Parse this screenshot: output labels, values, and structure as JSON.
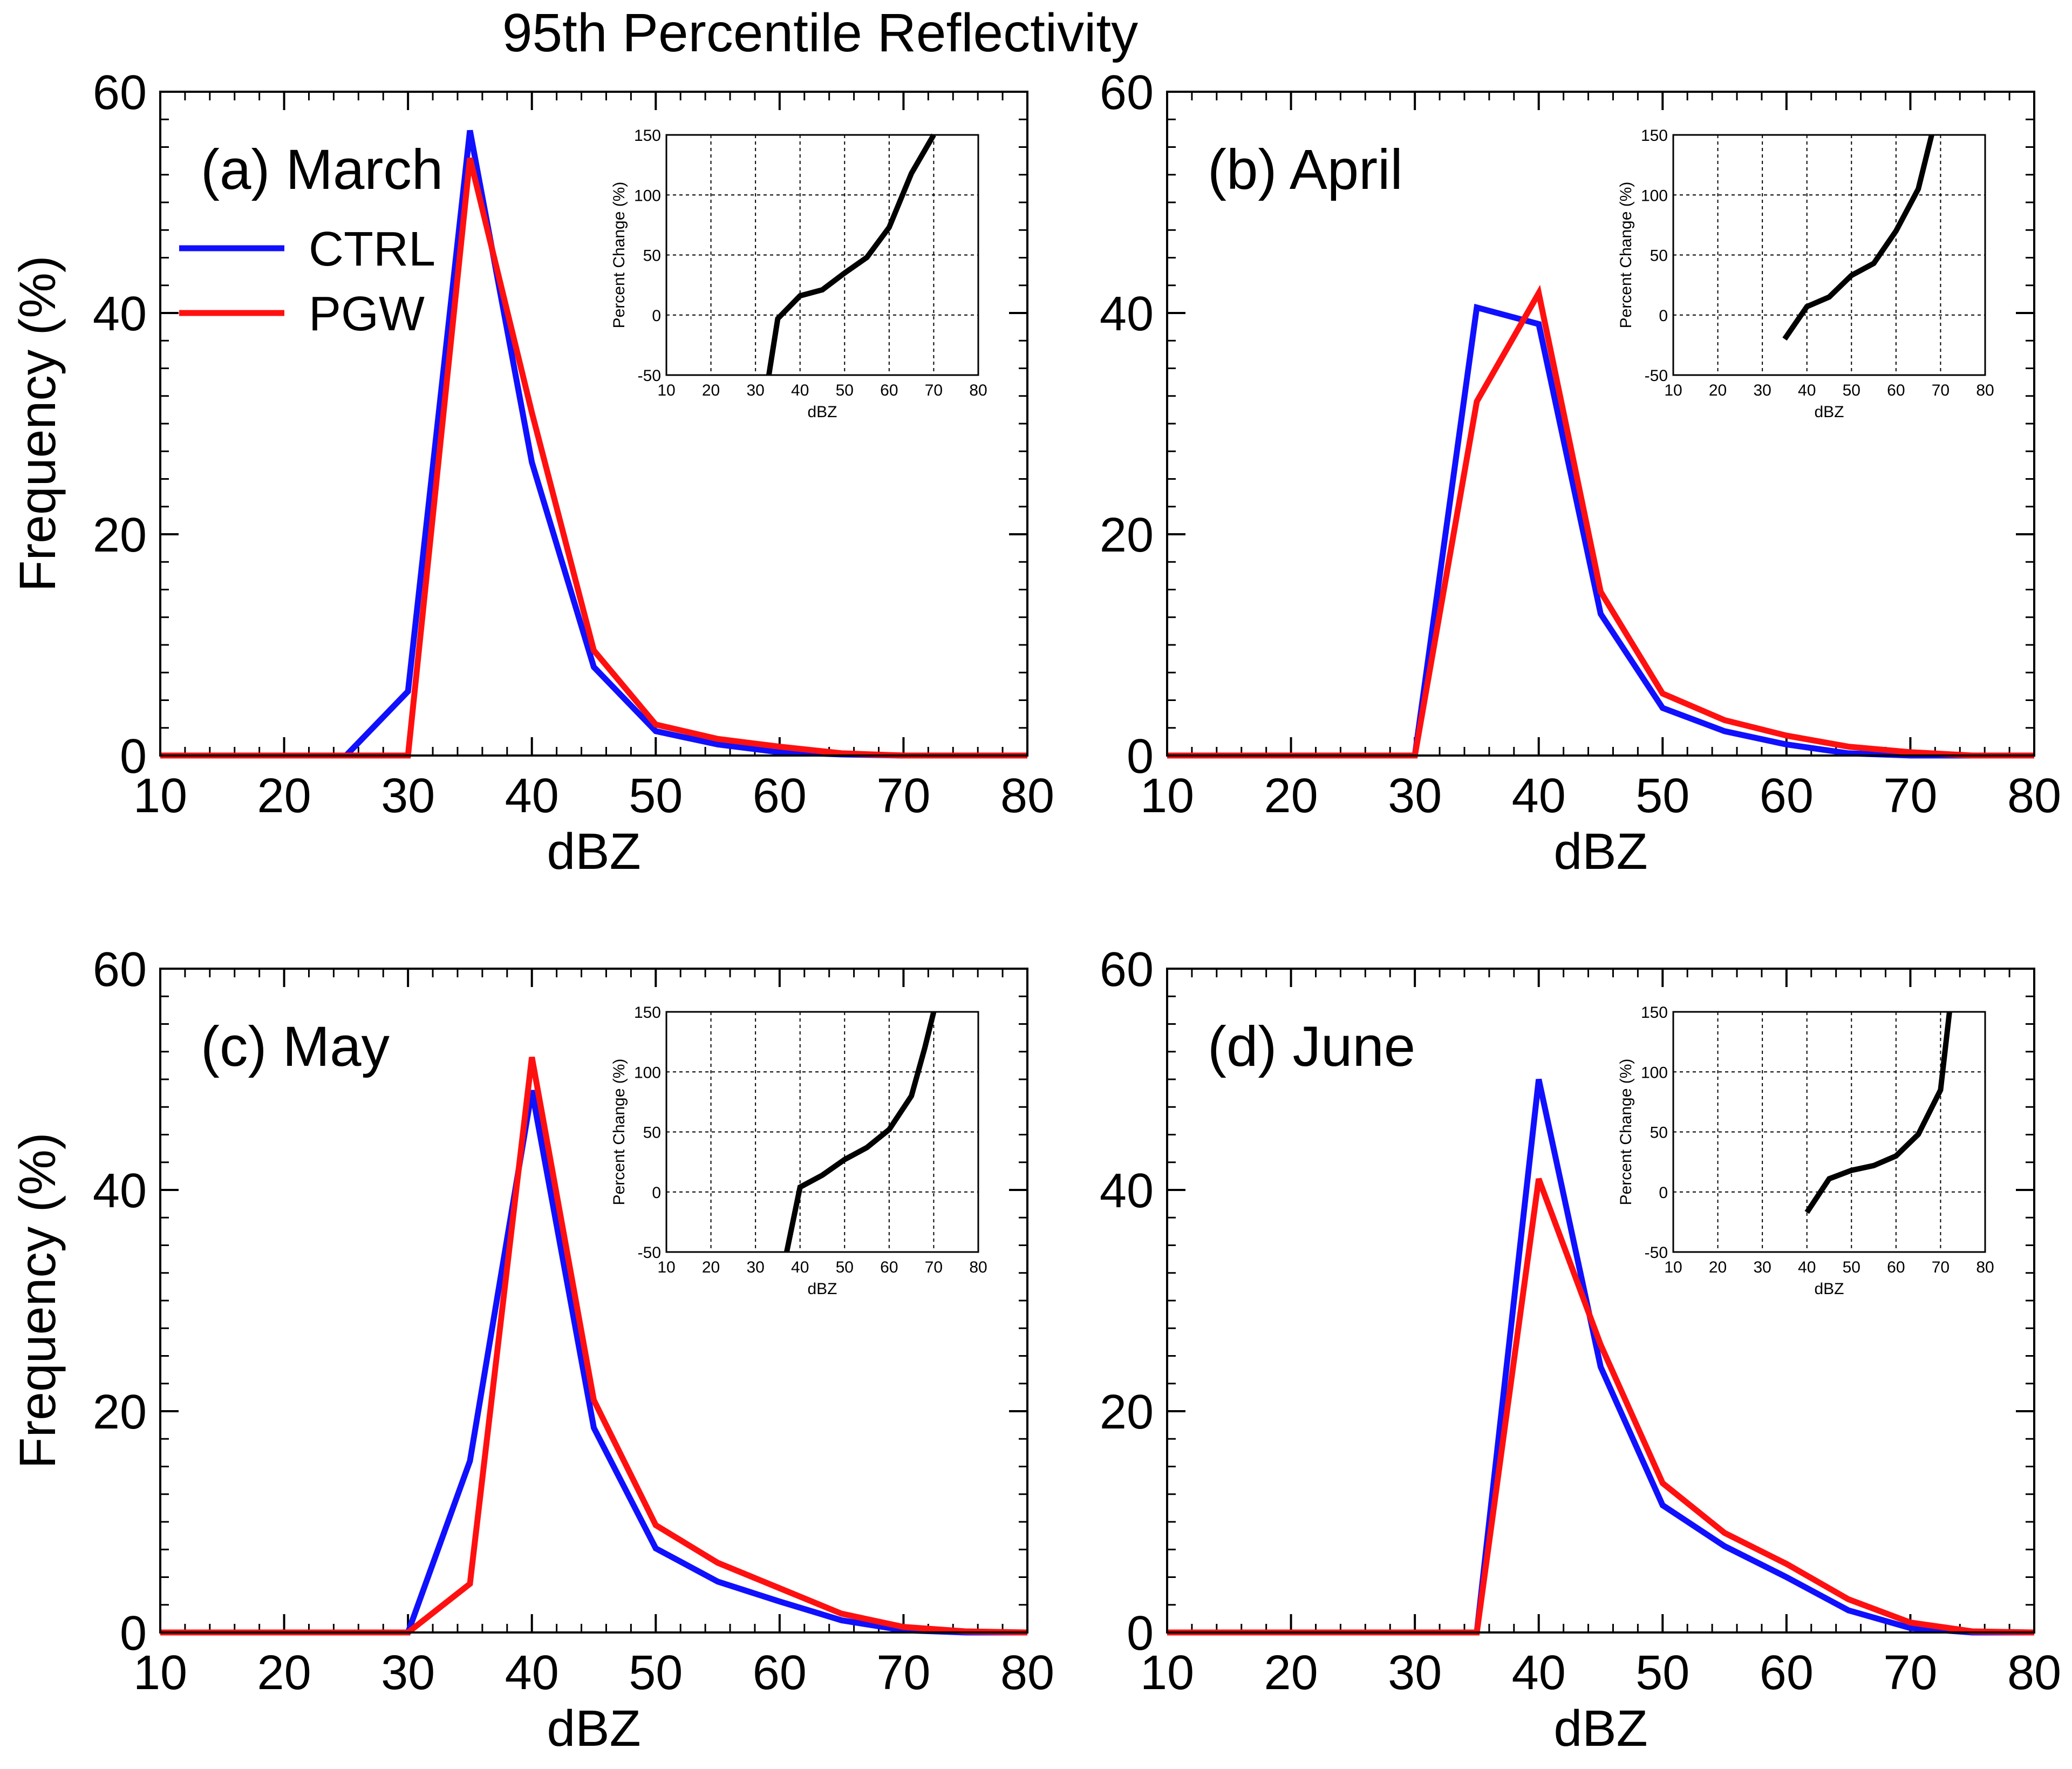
{
  "figure": {
    "title": "95th Percentile Reflectivity"
  },
  "legend": {
    "items": [
      {
        "label": "CTRL",
        "color": "#1010ff"
      },
      {
        "label": "PGW",
        "color": "#ff1010"
      }
    ]
  },
  "colors": {
    "ctrl": "#1010ff",
    "pgw": "#ff1010",
    "inset_line": "#000000"
  },
  "chart_data": [
    {
      "type": "line",
      "panel_label": "(a) March",
      "xlabel": "dBZ",
      "ylabel": "Frequency (%)",
      "xlim": [
        10,
        80
      ],
      "ylim": [
        0,
        60
      ],
      "xticks": [
        10,
        20,
        30,
        40,
        50,
        60,
        70,
        80
      ],
      "yticks": [
        0,
        20,
        40,
        60
      ],
      "series": [
        {
          "name": "CTRL",
          "x": [
            10,
            15,
            20,
            25,
            30,
            35,
            40,
            45,
            50,
            55,
            60,
            65,
            70,
            75,
            80
          ],
          "y": [
            0,
            0,
            0,
            0,
            5.8,
            56.5,
            26.5,
            8.0,
            2.2,
            1.0,
            0.3,
            0.1,
            0,
            0,
            0
          ]
        },
        {
          "name": "PGW",
          "x": [
            10,
            15,
            20,
            25,
            30,
            35,
            40,
            45,
            50,
            55,
            60,
            65,
            70,
            75,
            80
          ],
          "y": [
            0,
            0,
            0,
            0,
            0,
            54.0,
            31.0,
            9.5,
            2.8,
            1.5,
            0.8,
            0.2,
            0,
            0,
            0
          ]
        }
      ],
      "inset": {
        "xlabel": "dBZ",
        "ylabel": "Percent Change (%)",
        "xlim": [
          10,
          80
        ],
        "ylim": [
          -50,
          150
        ],
        "xticks": [
          10,
          20,
          30,
          40,
          50,
          60,
          70,
          80
        ],
        "yticks": [
          -50,
          0,
          50,
          100,
          150
        ],
        "x": [
          33,
          35,
          40,
          45,
          50,
          55,
          60,
          65,
          70
        ],
        "y": [
          -50,
          -3,
          16,
          21,
          35,
          48,
          73,
          118,
          150
        ]
      }
    },
    {
      "type": "line",
      "panel_label": "(b) April",
      "xlabel": "dBZ",
      "ylabel": "",
      "xlim": [
        10,
        80
      ],
      "ylim": [
        0,
        60
      ],
      "xticks": [
        10,
        20,
        30,
        40,
        50,
        60,
        70,
        80
      ],
      "yticks": [
        0,
        20,
        40,
        60
      ],
      "series": [
        {
          "name": "CTRL",
          "x": [
            10,
            15,
            20,
            25,
            30,
            35,
            40,
            45,
            50,
            55,
            60,
            65,
            70,
            75,
            80
          ],
          "y": [
            0,
            0,
            0,
            0,
            0,
            40.5,
            39.0,
            12.8,
            4.3,
            2.2,
            1.0,
            0.2,
            0,
            0,
            0
          ]
        },
        {
          "name": "PGW",
          "x": [
            10,
            15,
            20,
            25,
            30,
            35,
            40,
            45,
            50,
            55,
            60,
            65,
            70,
            75,
            80
          ],
          "y": [
            0,
            0,
            0,
            0,
            0,
            32.0,
            41.8,
            14.8,
            5.6,
            3.2,
            1.8,
            0.8,
            0.3,
            0,
            0
          ]
        }
      ],
      "inset": {
        "xlabel": "dBZ",
        "ylabel": "Percent Change (%)",
        "xlim": [
          10,
          80
        ],
        "ylim": [
          -50,
          150
        ],
        "xticks": [
          10,
          20,
          30,
          40,
          50,
          60,
          70,
          80
        ],
        "yticks": [
          -50,
          0,
          50,
          100,
          150
        ],
        "x": [
          35,
          40,
          45,
          50,
          55,
          60,
          65,
          68
        ],
        "y": [
          -20,
          7,
          15,
          33,
          43,
          70,
          105,
          150
        ]
      }
    },
    {
      "type": "line",
      "panel_label": "(c) May",
      "xlabel": "dBZ",
      "ylabel": "Frequency (%)",
      "xlim": [
        10,
        80
      ],
      "ylim": [
        0,
        60
      ],
      "xticks": [
        10,
        20,
        30,
        40,
        50,
        60,
        70,
        80
      ],
      "yticks": [
        0,
        20,
        40,
        60
      ],
      "series": [
        {
          "name": "CTRL",
          "x": [
            10,
            15,
            20,
            25,
            30,
            35,
            40,
            45,
            50,
            55,
            60,
            65,
            70,
            75,
            80
          ],
          "y": [
            0,
            0,
            0,
            0,
            0,
            15.5,
            49.0,
            18.5,
            7.6,
            4.6,
            2.8,
            1.1,
            0.2,
            0,
            0
          ]
        },
        {
          "name": "PGW",
          "x": [
            10,
            15,
            20,
            25,
            30,
            35,
            40,
            45,
            50,
            55,
            60,
            65,
            70,
            75,
            80
          ],
          "y": [
            0,
            0,
            0,
            0,
            0,
            4.4,
            52.0,
            21.0,
            9.7,
            6.3,
            4.0,
            1.7,
            0.5,
            0.1,
            0
          ]
        }
      ],
      "inset": {
        "xlabel": "dBZ",
        "ylabel": "Percent Change (%)",
        "xlim": [
          10,
          80
        ],
        "ylim": [
          -50,
          150
        ],
        "xticks": [
          10,
          20,
          30,
          40,
          50,
          60,
          70,
          80
        ],
        "yticks": [
          -50,
          0,
          50,
          100,
          150
        ],
        "x": [
          37,
          40,
          45,
          50,
          55,
          60,
          65,
          68,
          70
        ],
        "y": [
          -50,
          4,
          14,
          27,
          37,
          52,
          80,
          120,
          150
        ]
      }
    },
    {
      "type": "line",
      "panel_label": "(d) June",
      "xlabel": "dBZ",
      "ylabel": "",
      "xlim": [
        10,
        80
      ],
      "ylim": [
        0,
        60
      ],
      "xticks": [
        10,
        20,
        30,
        40,
        50,
        60,
        70,
        80
      ],
      "yticks": [
        0,
        20,
        40,
        60
      ],
      "series": [
        {
          "name": "CTRL",
          "x": [
            10,
            15,
            20,
            25,
            30,
            35,
            40,
            45,
            50,
            55,
            60,
            65,
            70,
            75,
            80
          ],
          "y": [
            0,
            0,
            0,
            0,
            0,
            0,
            50.0,
            24.0,
            11.5,
            7.8,
            5.0,
            2.0,
            0.4,
            0,
            0
          ]
        },
        {
          "name": "PGW",
          "x": [
            10,
            15,
            20,
            25,
            30,
            35,
            40,
            45,
            50,
            55,
            60,
            65,
            70,
            75,
            80
          ],
          "y": [
            0,
            0,
            0,
            0,
            0,
            0,
            41.0,
            26.0,
            13.5,
            9.0,
            6.2,
            3.0,
            0.9,
            0.1,
            0
          ]
        }
      ],
      "inset": {
        "xlabel": "dBZ",
        "ylabel": "Percent Change (%)",
        "xlim": [
          10,
          80
        ],
        "ylim": [
          -50,
          150
        ],
        "xticks": [
          10,
          20,
          30,
          40,
          50,
          60,
          70,
          80
        ],
        "yticks": [
          -50,
          0,
          50,
          100,
          150
        ],
        "x": [
          40,
          45,
          50,
          55,
          60,
          65,
          70,
          72
        ],
        "y": [
          -17,
          11,
          18,
          22,
          30,
          48,
          85,
          150
        ]
      }
    }
  ]
}
